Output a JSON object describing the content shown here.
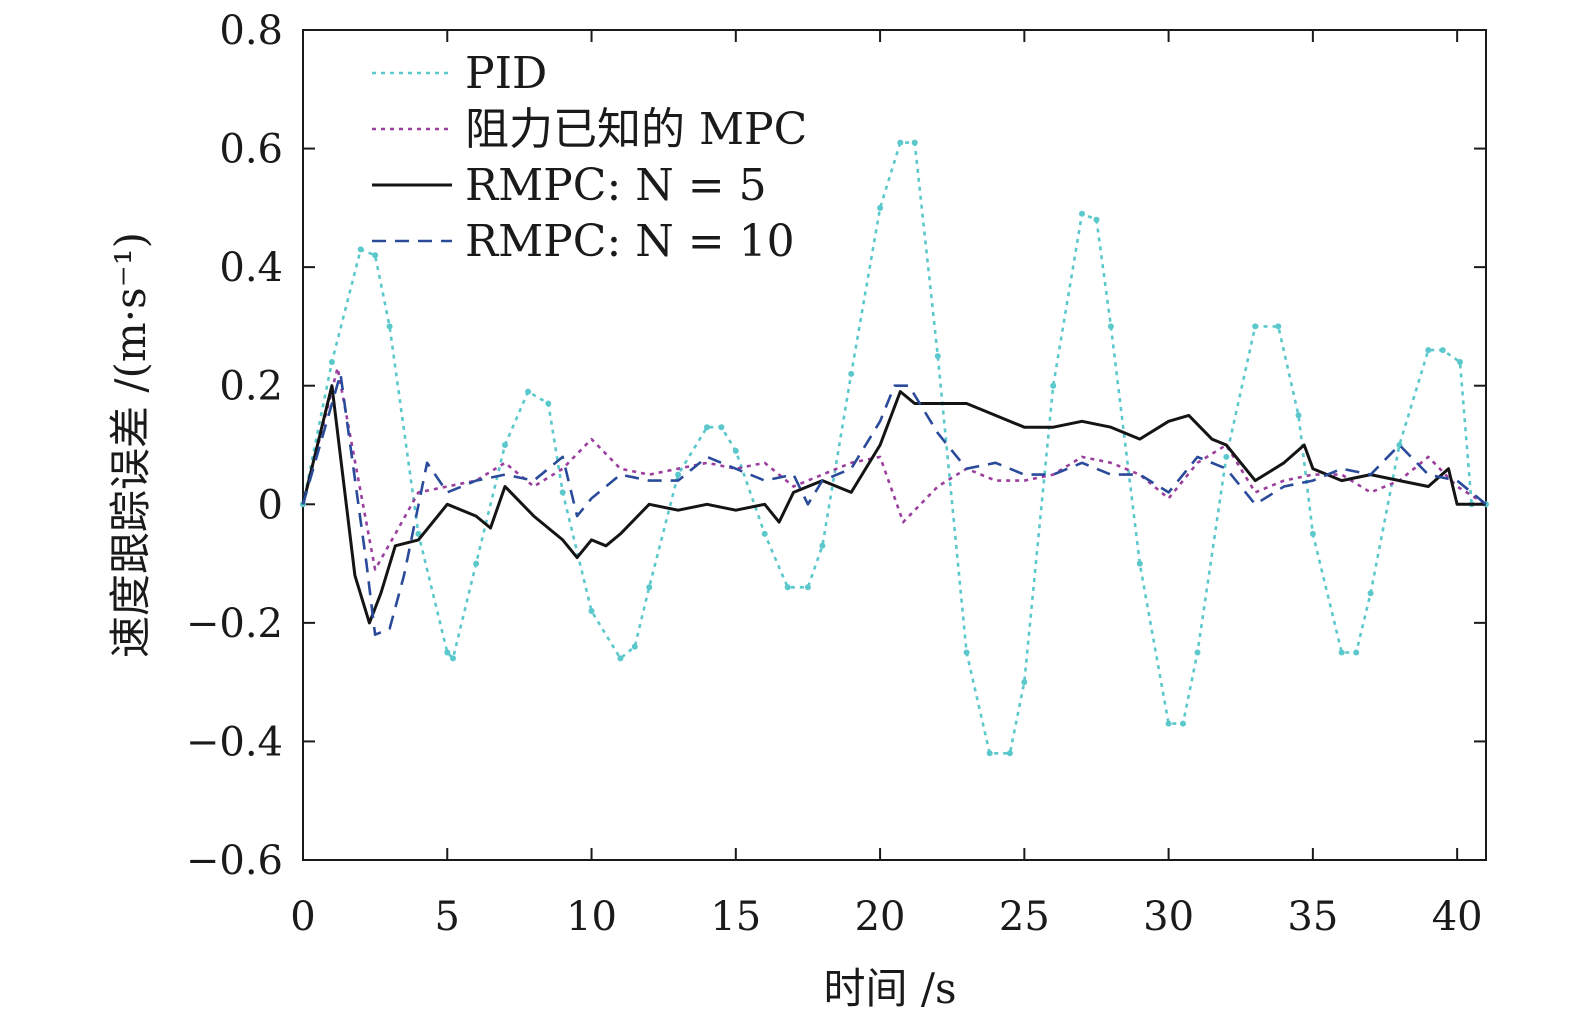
{
  "chart_data": {
    "type": "line",
    "xlabel": "时间 /s",
    "ylabel": "速度跟踪误差 /(m·s⁻¹)",
    "xlim": [
      0,
      41
    ],
    "ylim": [
      -0.6,
      0.8
    ],
    "xticks": [
      0,
      5,
      10,
      15,
      20,
      25,
      30,
      35,
      40
    ],
    "yticks": [
      0.8,
      0.6,
      0.4,
      0.2,
      0,
      -0.2,
      -0.4,
      -0.6
    ],
    "xtick_labels": [
      "0",
      "5",
      "10",
      "15",
      "20",
      "25",
      "30",
      "35",
      "40"
    ],
    "ytick_labels": [
      "0.8",
      "0.6",
      "0.4",
      "0.2",
      "0",
      "−0.2",
      "−0.4",
      "−0.6"
    ],
    "grid": false,
    "legend_position": "top-left",
    "series": [
      {
        "name": "PID",
        "color": "#5bc8cc",
        "style": "dotted-markers",
        "x": [
          0,
          1,
          2,
          2.5,
          3,
          4,
          5,
          5.2,
          6,
          7,
          7.8,
          8.5,
          9,
          10,
          11,
          11.5,
          12,
          13,
          14,
          14.5,
          15,
          16,
          16.8,
          17.5,
          18,
          19,
          20,
          20.7,
          21.2,
          22,
          23,
          23.8,
          24.5,
          25,
          26,
          27,
          27.5,
          28,
          29,
          30,
          30.5,
          31,
          32,
          33,
          33.8,
          34.5,
          35,
          36,
          36.5,
          37,
          38,
          39,
          39.5,
          40.1,
          40.5,
          41
        ],
        "y": [
          0,
          0.24,
          0.43,
          0.42,
          0.3,
          -0.05,
          -0.25,
          -0.26,
          -0.1,
          0.1,
          0.19,
          0.17,
          0.02,
          -0.18,
          -0.26,
          -0.24,
          -0.14,
          0.05,
          0.13,
          0.13,
          0.09,
          -0.05,
          -0.14,
          -0.14,
          -0.07,
          0.22,
          0.5,
          0.61,
          0.61,
          0.25,
          -0.25,
          -0.42,
          -0.42,
          -0.3,
          0.2,
          0.49,
          0.48,
          0.3,
          -0.1,
          -0.37,
          -0.37,
          -0.25,
          0.08,
          0.3,
          0.3,
          0.15,
          -0.05,
          -0.25,
          -0.25,
          -0.15,
          0.1,
          0.26,
          0.26,
          0.24,
          0,
          0
        ]
      },
      {
        "name": "阻力已知的 MPC",
        "color": "#9b3f9e",
        "style": "dotted",
        "x": [
          0,
          1.2,
          2.5,
          3.2,
          4,
          5,
          6,
          7,
          8,
          9,
          10,
          11,
          12,
          13,
          14,
          15,
          16,
          17,
          18,
          19,
          20,
          20.8,
          22,
          23,
          24,
          25,
          26,
          27,
          28,
          29,
          30,
          31,
          32,
          33,
          34,
          35,
          36,
          37,
          38,
          39,
          40,
          41
        ],
        "y": [
          0,
          0.23,
          -0.11,
          -0.05,
          0.02,
          0.03,
          0.04,
          0.07,
          0.03,
          0.06,
          0.11,
          0.06,
          0.05,
          0.06,
          0.07,
          0.06,
          0.07,
          0.03,
          0.05,
          0.07,
          0.08,
          -0.03,
          0.03,
          0.06,
          0.04,
          0.04,
          0.05,
          0.08,
          0.07,
          0.05,
          0.01,
          0.07,
          0.1,
          0.02,
          0.04,
          0.05,
          0.05,
          0.02,
          0.04,
          0.08,
          0.03,
          0
        ]
      },
      {
        "name": "RMPC: N = 5",
        "color": "#141414",
        "style": "solid",
        "x": [
          0,
          1,
          1.8,
          2.3,
          2.7,
          3.2,
          4,
          5,
          6,
          6.5,
          7,
          8,
          9,
          9.5,
          10,
          10.5,
          11,
          12,
          13,
          14,
          15,
          16,
          16.5,
          17,
          18,
          19,
          20,
          20.7,
          21.2,
          22,
          23,
          24,
          25,
          26,
          27,
          28,
          29,
          30,
          30.7,
          31.5,
          32,
          33,
          34,
          34.7,
          35,
          36,
          37,
          38,
          39,
          39.7,
          40,
          41
        ],
        "y": [
          0,
          0.2,
          -0.12,
          -0.2,
          -0.15,
          -0.07,
          -0.06,
          0.0,
          -0.02,
          -0.04,
          0.03,
          -0.02,
          -0.06,
          -0.09,
          -0.06,
          -0.07,
          -0.05,
          0.0,
          -0.01,
          0.0,
          -0.01,
          0.0,
          -0.03,
          0.02,
          0.04,
          0.02,
          0.1,
          0.19,
          0.17,
          0.17,
          0.17,
          0.15,
          0.13,
          0.13,
          0.14,
          0.13,
          0.11,
          0.14,
          0.15,
          0.11,
          0.1,
          0.04,
          0.07,
          0.1,
          0.06,
          0.04,
          0.05,
          0.04,
          0.03,
          0.06,
          0.0,
          0.0
        ]
      },
      {
        "name": "RMPC: N = 10",
        "color": "#2a4a9a",
        "style": "dashed",
        "x": [
          0,
          1.3,
          2.2,
          2.5,
          3,
          3.5,
          4.3,
          5,
          6,
          7,
          8,
          9,
          9.5,
          10,
          11,
          12,
          13,
          14,
          15,
          16,
          17,
          17.5,
          18,
          19,
          20,
          20.5,
          21,
          22,
          23,
          24,
          25,
          26,
          27,
          28,
          29,
          30,
          31,
          32,
          33,
          34,
          35,
          36,
          37,
          38,
          39,
          40,
          41
        ],
        "y": [
          0,
          0.22,
          -0.1,
          -0.22,
          -0.21,
          -0.12,
          0.07,
          0.02,
          0.04,
          0.05,
          0.04,
          0.08,
          -0.02,
          0.01,
          0.05,
          0.04,
          0.04,
          0.08,
          0.06,
          0.04,
          0.05,
          0.0,
          0.04,
          0.06,
          0.14,
          0.2,
          0.2,
          0.12,
          0.06,
          0.07,
          0.05,
          0.05,
          0.07,
          0.05,
          0.05,
          0.02,
          0.08,
          0.06,
          0.0,
          0.03,
          0.04,
          0.06,
          0.05,
          0.1,
          0.05,
          0.04,
          0
        ]
      }
    ]
  }
}
